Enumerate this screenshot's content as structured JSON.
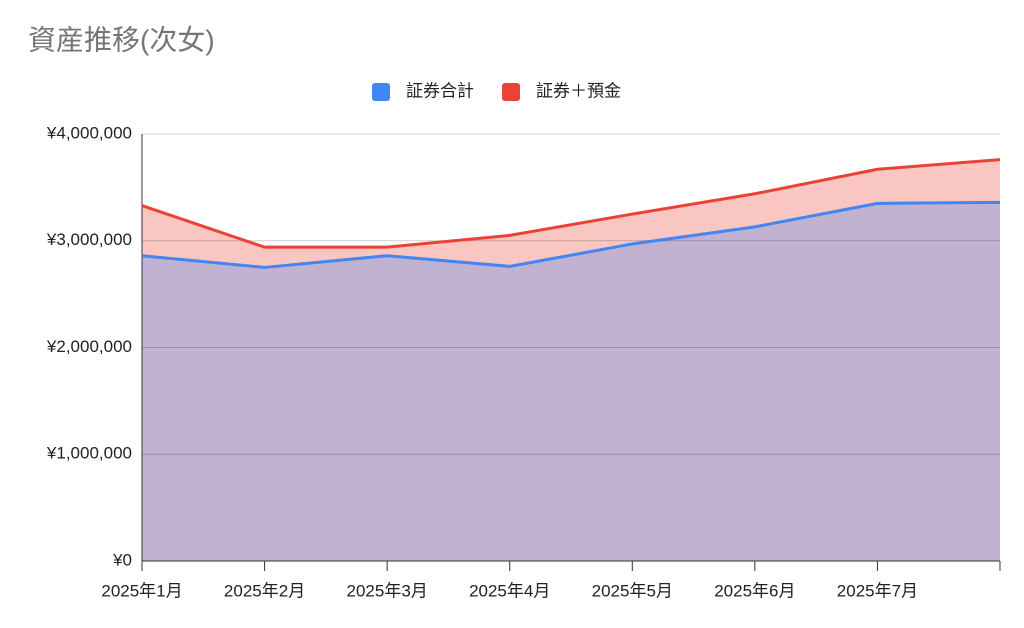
{
  "chart_data": {
    "type": "area",
    "title": "資産推移(次女)",
    "categories": [
      "2025年1月",
      "2025年2月",
      "2025年3月",
      "2025年4月",
      "2025年5月",
      "2025年6月",
      "2025年7月",
      null
    ],
    "series": [
      {
        "name": "証券合計",
        "color": "#4285f4",
        "values": [
          2860000,
          2750000,
          2860000,
          2760000,
          2970000,
          3130000,
          3350000,
          3360000
        ]
      },
      {
        "name": "証券＋預金",
        "color": "#ea4335",
        "values": [
          3330000,
          2940000,
          2940000,
          3050000,
          3250000,
          3440000,
          3670000,
          3760000
        ]
      }
    ],
    "ylim": [
      0,
      4000000
    ],
    "yticks": [
      {
        "value": 0,
        "label": "¥0"
      },
      {
        "value": 1000000,
        "label": "¥1,000,000"
      },
      {
        "value": 2000000,
        "label": "¥2,000,000"
      },
      {
        "value": 3000000,
        "label": "¥3,000,000"
      },
      {
        "value": 4000000,
        "label": "¥4,000,000"
      }
    ],
    "grid": true,
    "legend": "top"
  }
}
